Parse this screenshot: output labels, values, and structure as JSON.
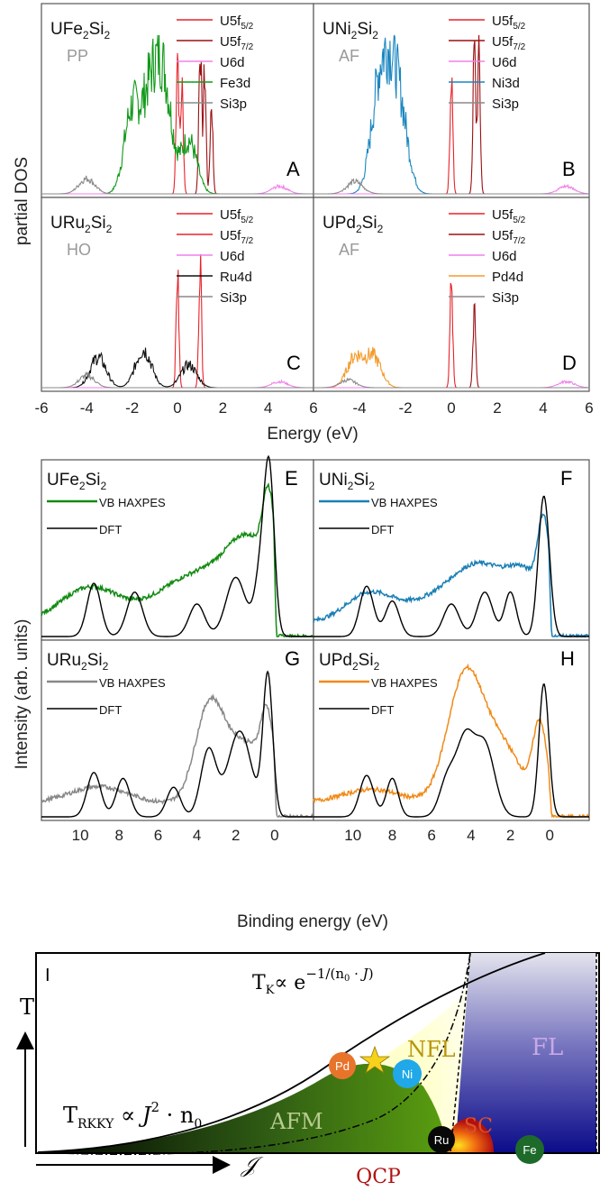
{
  "colors": {
    "U5f52": "#e8222a",
    "U5f72": "#9b1014",
    "U6d": "#f080e8",
    "Fe3d": "#129a1a",
    "Ni3d": "#1a86c0",
    "Ru4d": "#111111",
    "Pd4d": "#f59a2a",
    "Si3p": "#8a8a8a",
    "DFT": "#000000",
    "hax_Fe": "#118a11",
    "hax_Ni": "#1a7fb5",
    "hax_Ru": "#888888",
    "hax_Pd": "#f08a18",
    "pd_circle": "#e8742c",
    "ni_circle": "#20a8e8",
    "ru_circle": "#080808",
    "fe_circle": "#1e6a2a",
    "star": "#f7d21a",
    "qcp": "#b01010",
    "nfl_text": "#b8960e",
    "fl_text": "#c8a8e8",
    "sc_text": "#e0502a"
  },
  "panels_top": [
    {
      "id": "A",
      "letter": "A",
      "compound": "UFe",
      "sub": "2",
      "tail": "Si",
      "sub2": "2",
      "state": "PP",
      "legend": [
        {
          "base": "U5f",
          "sub": "5/2",
          "key": "U5f52"
        },
        {
          "base": "U5f",
          "sub": "7/2",
          "key": "U5f72"
        },
        {
          "base": "U6d",
          "sub": "",
          "key": "U6d"
        },
        {
          "base": "Fe3d",
          "sub": "",
          "key": "Fe3d"
        },
        {
          "base": "Si3p",
          "sub": "",
          "key": "Si3p"
        }
      ]
    },
    {
      "id": "B",
      "letter": "B",
      "compound": "UNi",
      "sub": "2",
      "tail": "Si",
      "sub2": "2",
      "state": "AF",
      "legend": [
        {
          "base": "U5f",
          "sub": "5/2",
          "key": "U5f52"
        },
        {
          "base": "U5f",
          "sub": "7/2",
          "key": "U5f72"
        },
        {
          "base": "U6d",
          "sub": "",
          "key": "U6d"
        },
        {
          "base": "Ni3d",
          "sub": "",
          "key": "Ni3d"
        },
        {
          "base": "Si3p",
          "sub": "",
          "key": "Si3p"
        }
      ]
    },
    {
      "id": "C",
      "letter": "C",
      "compound": "URu",
      "sub": "2",
      "tail": "Si",
      "sub2": "2",
      "state": "HO",
      "legend": [
        {
          "base": "U5f",
          "sub": "5/2",
          "key": "U5f52"
        },
        {
          "base": "U5f",
          "sub": "7/2",
          "key": "U5f52"
        },
        {
          "base": "U6d",
          "sub": "",
          "key": "U6d"
        },
        {
          "base": "Ru4d",
          "sub": "",
          "key": "Ru4d"
        },
        {
          "base": "Si3p",
          "sub": "",
          "key": "Si3p"
        }
      ]
    },
    {
      "id": "D",
      "letter": "D",
      "compound": "UPd",
      "sub": "2",
      "tail": "Si",
      "sub2": "2",
      "state": "AF",
      "legend": [
        {
          "base": "U5f",
          "sub": "5/2",
          "key": "U5f52"
        },
        {
          "base": "U5f",
          "sub": "7/2",
          "key": "U5f72"
        },
        {
          "base": "U6d",
          "sub": "",
          "key": "U6d"
        },
        {
          "base": "Pd4d",
          "sub": "",
          "key": "Pd4d"
        },
        {
          "base": "Si3p",
          "sub": "",
          "key": "Si3p"
        }
      ]
    }
  ],
  "panels_mid": [
    {
      "id": "E",
      "letter": "E",
      "compound": "UFe",
      "sub": "2",
      "tail": "Si",
      "sub2": "2",
      "hax": "VB HAXPES",
      "dft": "DFT",
      "key": "hax_Fe"
    },
    {
      "id": "F",
      "letter": "F",
      "compound": "UNi",
      "sub": "2",
      "tail": "Si",
      "sub2": "2",
      "hax": "VB HAXPES",
      "dft": "DFT",
      "key": "hax_Ni"
    },
    {
      "id": "G",
      "letter": "G",
      "compound": "URu",
      "sub": "2",
      "tail": "Si",
      "sub2": "2",
      "hax": "VB HAXPES",
      "dft": "DFT",
      "key": "hax_Ru"
    },
    {
      "id": "H",
      "letter": "H",
      "compound": "UPd",
      "sub": "2",
      "tail": "Si",
      "sub2": "2",
      "hax": "VB HAXPES",
      "dft": "DFT",
      "key": "hax_Pd"
    }
  ],
  "chart_data": [
    {
      "type": "line",
      "title": "",
      "xlabel": "Energy (eV)",
      "ylabel": "partial DOS",
      "xlim": [
        -6,
        6
      ],
      "xticks": [
        "-6",
        "-4",
        "-2",
        "0",
        "2",
        "4",
        "6"
      ],
      "xticks2": [
        "-4",
        "-2",
        "0",
        "2",
        "4",
        "6"
      ],
      "series_peaks": {
        "UFe2Si2": {
          "U5f52": [
            [
              0.0,
              0.95
            ],
            [
              0.2,
              0.7
            ]
          ],
          "U5f72": [
            [
              1.0,
              1.0
            ],
            [
              1.2,
              0.8
            ],
            [
              1.5,
              0.6
            ]
          ],
          "Fe3d": [
            [
              -2.0,
              0.55
            ],
            [
              -1.2,
              0.6
            ],
            [
              -0.6,
              0.7
            ],
            [
              0.5,
              0.35
            ]
          ],
          "U6d": [
            [
              4.5,
              0.05
            ]
          ],
          "Si3p": [
            [
              -4.0,
              0.1
            ]
          ]
        },
        "UNi2Si2": {
          "U5f52": [
            [
              0.0,
              0.8
            ]
          ],
          "U5f72": [
            [
              1.0,
              0.95
            ],
            [
              1.2,
              0.9
            ]
          ],
          "Ni3d": [
            [
              -3.2,
              0.55
            ],
            [
              -2.7,
              0.6
            ],
            [
              -2.2,
              0.45
            ]
          ],
          "U6d": [
            [
              5.0,
              0.05
            ]
          ],
          "Si3p": [
            [
              -4.2,
              0.08
            ]
          ]
        },
        "URu2Si2": {
          "U5f52": [
            [
              0.0,
              0.75
            ],
            [
              1.0,
              0.85
            ]
          ],
          "Ru4d": [
            [
              -3.5,
              0.2
            ],
            [
              -1.5,
              0.25
            ],
            [
              0.5,
              0.15
            ]
          ],
          "U6d": [
            [
              4.5,
              0.04
            ]
          ],
          "Si3p": [
            [
              -4.0,
              0.08
            ]
          ]
        },
        "UPd2Si2": {
          "U5f52": [
            [
              0.0,
              0.7
            ]
          ],
          "U5f72": [
            [
              1.0,
              0.5
            ]
          ],
          "Pd4d": [
            [
              -4.2,
              0.2
            ],
            [
              -3.4,
              0.2
            ]
          ],
          "U6d": [
            [
              5.0,
              0.04
            ]
          ],
          "Si3p": [
            [
              -4.5,
              0.05
            ]
          ]
        }
      }
    },
    {
      "type": "line",
      "title": "",
      "xlabel": "Binding energy (eV)",
      "ylabel": "Intensity (arb. units)",
      "xlim": [
        12,
        -2
      ],
      "xticks": [
        "10",
        "8",
        "6",
        "4",
        "2",
        "0"
      ],
      "series": [
        {
          "name": "VB HAXPES",
          "compound": "UFe2Si2"
        },
        {
          "name": "DFT",
          "compound": "UFe2Si2"
        },
        {
          "name": "VB HAXPES",
          "compound": "UNi2Si2"
        },
        {
          "name": "DFT",
          "compound": "UNi2Si2"
        },
        {
          "name": "VB HAXPES",
          "compound": "URu2Si2"
        },
        {
          "name": "DFT",
          "compound": "URu2Si2"
        },
        {
          "name": "VB HAXPES",
          "compound": "UPd2Si2"
        },
        {
          "name": "DFT",
          "compound": "UPd2Si2"
        }
      ]
    },
    {
      "type": "diagram",
      "panel": "I",
      "labels": {
        "T": "T",
        "J": "𝒥",
        "QCP": "QCP",
        "AFM": "AFM",
        "NFL": "NFL",
        "FL": "FL",
        "SC": "SC",
        "TK": "T",
        "TKsub": "K",
        "TKtail": "∝ e",
        "TKexp": "−1/(n",
        "TKexp0": "0",
        "TKexptail": " · 𝐽)",
        "TRKKY": "T",
        "TRKKYsub": "RKKY",
        "TRKKYtail": " ∝ 𝐽",
        "TRKKYsup": "2",
        "TRKKYend": " · n",
        "TRKKYend0": "0"
      },
      "markers": [
        {
          "label": "Pd",
          "key": "pd_circle"
        },
        {
          "label": "Ni",
          "key": "ni_circle"
        },
        {
          "label": "Ru",
          "key": "ru_circle"
        },
        {
          "label": "Fe",
          "key": "fe_circle"
        }
      ]
    }
  ]
}
